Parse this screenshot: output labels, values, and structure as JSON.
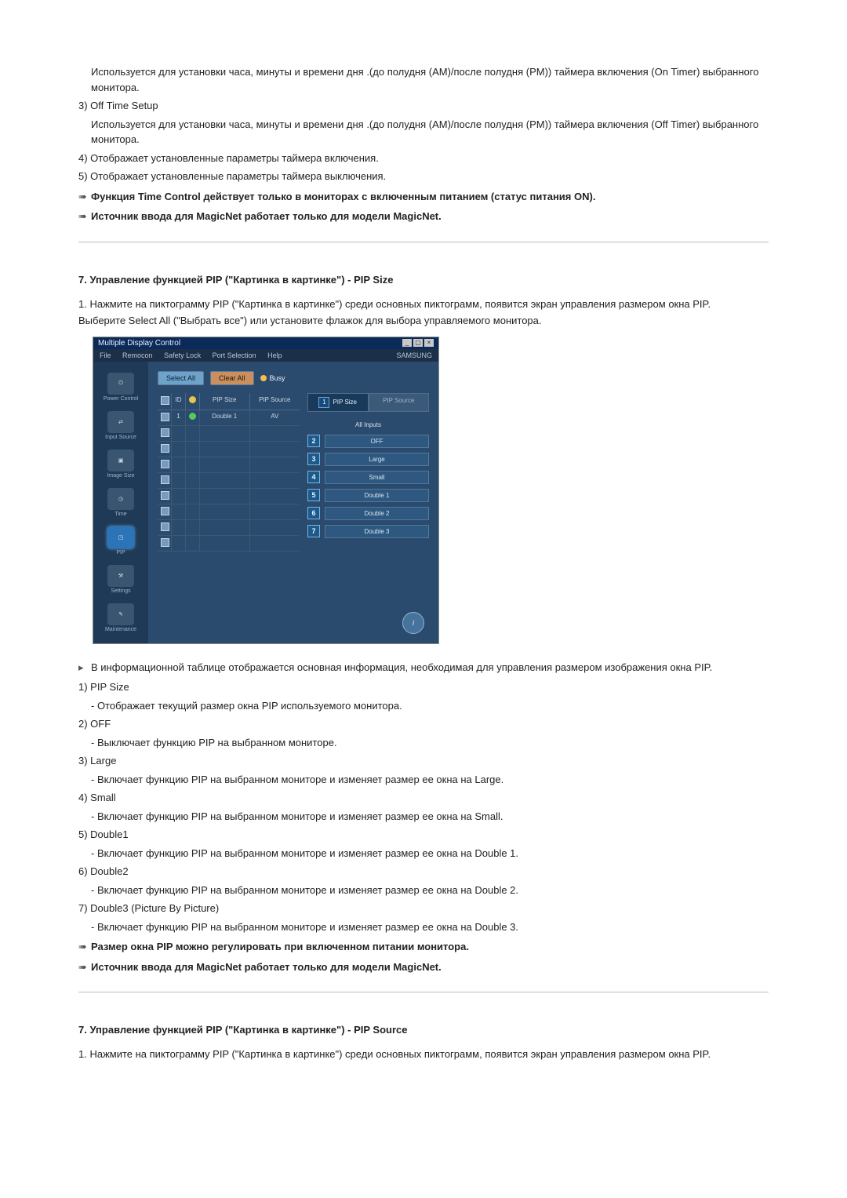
{
  "top": {
    "on_timer_desc": "Используется для установки часа, минуты и времени дня .(до полудня (AM)/после полудня (PM)) таймера включения (On Timer) выбранного монитора.",
    "item3_label": "3)  Off Time Setup",
    "off_timer_desc": "Используется для установки часа, минуты и времени дня .(до полудня (AM)/после полудня (PM)) таймера включения (Off Timer) выбранного монитора.",
    "item4": "4)  Отображает установленные параметры таймера включения.",
    "item5": "5)  Отображает установленные параметры таймера выключения.",
    "note1": "Функция Time Control действует только в мониторах с включенным питанием (статус питания ON).",
    "note2": "Источник ввода для MagicNet работает только для модели MagicNet."
  },
  "section_pip_size": {
    "title": "7. Управление функцией PIP (\"Картинка в картинке\") - PIP Size",
    "step1": "1.  Нажмите на пиктограмму PIP (\"Картинка в картинке\") среди основных пиктограмм, появится экран управления размером окна PIP.",
    "step1b": "Выберите Select All (\"Выбрать все\") или установите флажок для выбора управляемого монитора.",
    "info": "В информационной таблице отображается основная информация, необходимая для управления размером изображения окна PIP.",
    "i1_label": "1)  PIP Size",
    "i1_desc": "- Отображает текущий размер окна PIP используемого монитора.",
    "i2_label": "2)  OFF",
    "i2_desc": "- Выключает функцию PIP на выбранном мониторе.",
    "i3_label": "3)  Large",
    "i3_desc": "- Включает функцию PIP на выбранном мониторе и изменяет размер ее окна на Large.",
    "i4_label": "4)  Small",
    "i4_desc": "- Включает функцию PIP на выбранном мониторе и изменяет размер ее окна на Small.",
    "i5_label": "5)  Double1",
    "i5_desc": "- Включает функцию PIP на выбранном мониторе и изменяет размер ее окна на Double 1.",
    "i6_label": "6)  Double2",
    "i6_desc": "- Включает функцию PIP на выбранном мониторе и изменяет размер ее окна на Double 2.",
    "i7_label": "7)  Double3 (Picture By Picture)",
    "i7_desc": "- Включает функцию PIP на выбранном мониторе и изменяет размер ее окна на Double 3.",
    "note1": "Размер окна PIP можно регулировать при включенном питании монитора.",
    "note2": "Источник ввода для MagicNet работает только для модели MagicNet."
  },
  "section_pip_source": {
    "title": "7. Управление функцией PIP (\"Картинка в картинке\") - PIP Source",
    "step1": "1.  Нажмите на пиктограмму PIP (\"Картинка в картинке\") среди основных пиктограмм, появится экран управления размером окна PIP."
  },
  "app": {
    "window_title": "Multiple Display Control",
    "menu": {
      "file": "File",
      "remocon": "Remocon",
      "safety": "Safety Lock",
      "port": "Port Selection",
      "help": "Help",
      "brand": "SAMSUNG"
    },
    "sidebar": {
      "power": "Power Control",
      "input": "Input Source",
      "image": "Image Size",
      "time": "Time",
      "pip": "PIP",
      "settings": "Settings",
      "maint": "Maintenance"
    },
    "toolbar": {
      "select_all": "Select All",
      "clear_all": "Clear All",
      "busy": "Busy"
    },
    "table": {
      "cols": {
        "chk": "☑",
        "id": "ID",
        "stat": "●",
        "pipsize": "PIP Size",
        "pipsource": "PIP Source"
      },
      "row0": {
        "pipsize": "Double 1",
        "pipsource": "AV"
      }
    },
    "tabs": {
      "pipsize": "PIP Size",
      "pipsource": "PIP Source",
      "num1": "1"
    },
    "all_inputs": "All Inputs",
    "options": {
      "n2": "2",
      "off": "OFF",
      "n3": "3",
      "large": "Large",
      "n4": "4",
      "small": "Small",
      "n5": "5",
      "double1": "Double 1",
      "n6": "6",
      "double2": "Double 2",
      "n7": "7",
      "double3": "Double 3"
    }
  }
}
